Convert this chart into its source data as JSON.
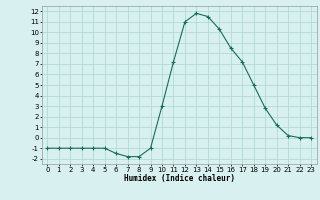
{
  "x": [
    0,
    1,
    2,
    3,
    4,
    5,
    6,
    7,
    8,
    9,
    10,
    11,
    12,
    13,
    14,
    15,
    16,
    17,
    18,
    19,
    20,
    21,
    22,
    23
  ],
  "y": [
    -1,
    -1,
    -1,
    -1,
    -1,
    -1,
    -1.5,
    -1.8,
    -1.8,
    -1.0,
    3.0,
    7.2,
    11.0,
    11.8,
    11.5,
    10.3,
    8.5,
    7.2,
    5.0,
    2.8,
    1.2,
    0.2,
    0.0,
    0.0
  ],
  "line_color": "#1a6b5a",
  "marker": "+",
  "marker_size": 3,
  "bg_color": "#d8f0f0",
  "grid_color": "#aad8d0",
  "xlabel": "Humidex (Indice chaleur)",
  "xlim": [
    -0.5,
    23.5
  ],
  "ylim": [
    -2.5,
    12.5
  ],
  "xticks": [
    0,
    1,
    2,
    3,
    4,
    5,
    6,
    7,
    8,
    9,
    10,
    11,
    12,
    13,
    14,
    15,
    16,
    17,
    18,
    19,
    20,
    21,
    22,
    23
  ],
  "yticks": [
    -2,
    -1,
    0,
    1,
    2,
    3,
    4,
    5,
    6,
    7,
    8,
    9,
    10,
    11,
    12
  ],
  "tick_labelsize": 5,
  "xlabel_fontsize": 5.5,
  "linewidth": 0.8
}
